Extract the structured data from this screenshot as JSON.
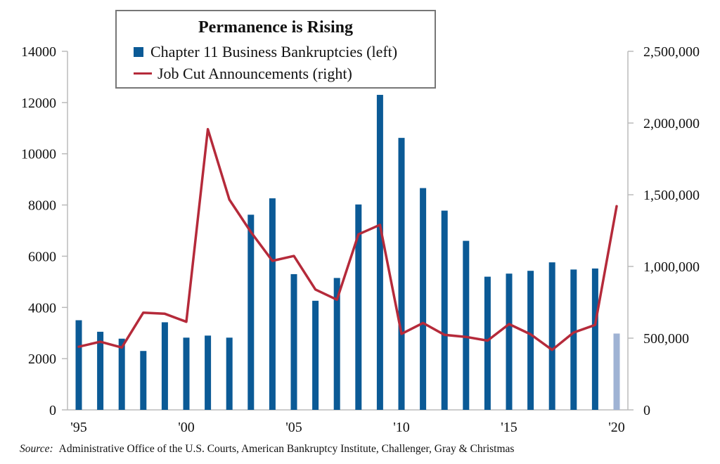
{
  "chart_data": {
    "type": "bar+line",
    "title": "Permanence is Rising",
    "categories": [
      "'95",
      "'96",
      "'97",
      "'98",
      "'99",
      "'00",
      "'01",
      "'02",
      "'03",
      "'04",
      "'05",
      "'06",
      "'07",
      "'08",
      "'09",
      "'10",
      "'11",
      "'12",
      "'13",
      "'14",
      "'15",
      "'16",
      "'17",
      "'18",
      "'19",
      "'20"
    ],
    "x_tick_labels": [
      "'95",
      "'00",
      "'05",
      "'10",
      "'15",
      "'20"
    ],
    "series": [
      {
        "name": "Chapter 11 Business Bankruptcies (left)",
        "type": "bar",
        "axis": "left",
        "color": "#0b5a96",
        "highlight_color": "#9fb3d4",
        "highlight_last": true,
        "values": [
          3500,
          3050,
          2780,
          2300,
          3420,
          2820,
          2900,
          2820,
          7620,
          8260,
          5300,
          4260,
          5150,
          8020,
          12300,
          10620,
          8660,
          7780,
          6600,
          5200,
          5320,
          5430,
          5760,
          5480,
          5520,
          2980
        ]
      },
      {
        "name": "Job Cut Announcements (right)",
        "type": "line",
        "axis": "right",
        "color": "#b52a3a",
        "values": [
          440000,
          475000,
          435000,
          678000,
          670000,
          614000,
          1957000,
          1466000,
          1240000,
          1039000,
          1073000,
          839000,
          768000,
          1224000,
          1290000,
          530000,
          606000,
          523000,
          509000,
          483000,
          598000,
          527000,
          418000,
          539000,
          592000,
          1420000
        ]
      }
    ],
    "left_axis": {
      "min": 0,
      "max": 14000,
      "ticks": [
        0,
        2000,
        4000,
        6000,
        8000,
        10000,
        12000,
        14000
      ],
      "tick_labels": [
        "0",
        "2000",
        "4000",
        "6000",
        "8000",
        "10000",
        "12000",
        "14000"
      ]
    },
    "right_axis": {
      "min": 0,
      "max": 2500000,
      "ticks": [
        0,
        500000,
        1000000,
        1500000,
        2000000,
        2500000
      ],
      "tick_labels": [
        "0",
        "500,000",
        "1,000,000",
        "1,500,000",
        "2,000,000",
        "2,500,000"
      ]
    },
    "grid": false,
    "legend_position": "top-center"
  },
  "legend": {
    "title": "Permanence is Rising",
    "bar_label": "Chapter 11 Business Bankruptcies (left)",
    "line_label": "Job Cut Announcements (right)"
  },
  "source": {
    "label": "Source:",
    "text": "Administrative Office of the U.S. Courts, American Bankruptcy Institute, Challenger, Gray & Christmas"
  }
}
